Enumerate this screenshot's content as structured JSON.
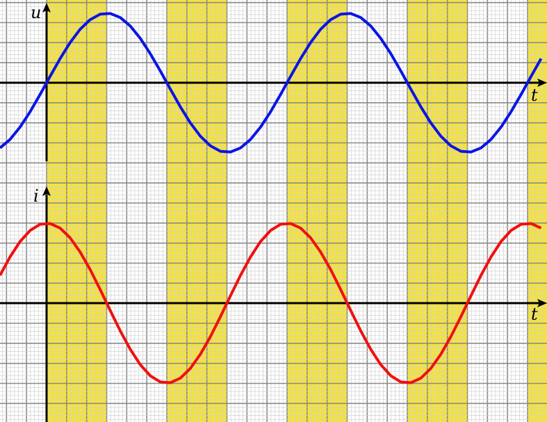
{
  "top": {
    "y_label": "u",
    "x_label": "t"
  },
  "bottom": {
    "y_label": "i",
    "x_label": "t"
  }
}
